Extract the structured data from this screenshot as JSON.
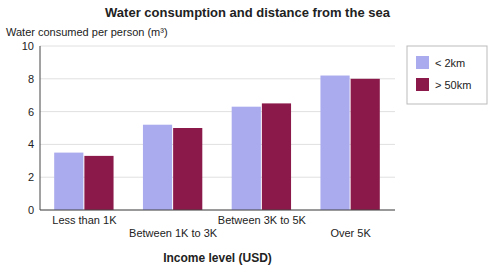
{
  "chart_data": {
    "type": "bar",
    "title": "Water consumption and distance from the sea",
    "ylabel": "Water consumed per person (m³)",
    "xlabel": "Income level (USD)",
    "categories": [
      "Less than 1K",
      "Between 1K to 3K",
      "Between 3K to 5K",
      "Over 5K"
    ],
    "series": [
      {
        "name": "< 2km",
        "color": "#aaaaee",
        "values": [
          3.5,
          5.2,
          6.3,
          8.2
        ]
      },
      {
        "name": "> 50km",
        "color": "#8b1a4a",
        "values": [
          3.3,
          5.0,
          6.5,
          8.0
        ]
      }
    ],
    "ylim": [
      0,
      10
    ],
    "yticks": [
      0,
      2,
      4,
      6,
      8,
      10
    ],
    "grid": true,
    "legend": "right"
  }
}
